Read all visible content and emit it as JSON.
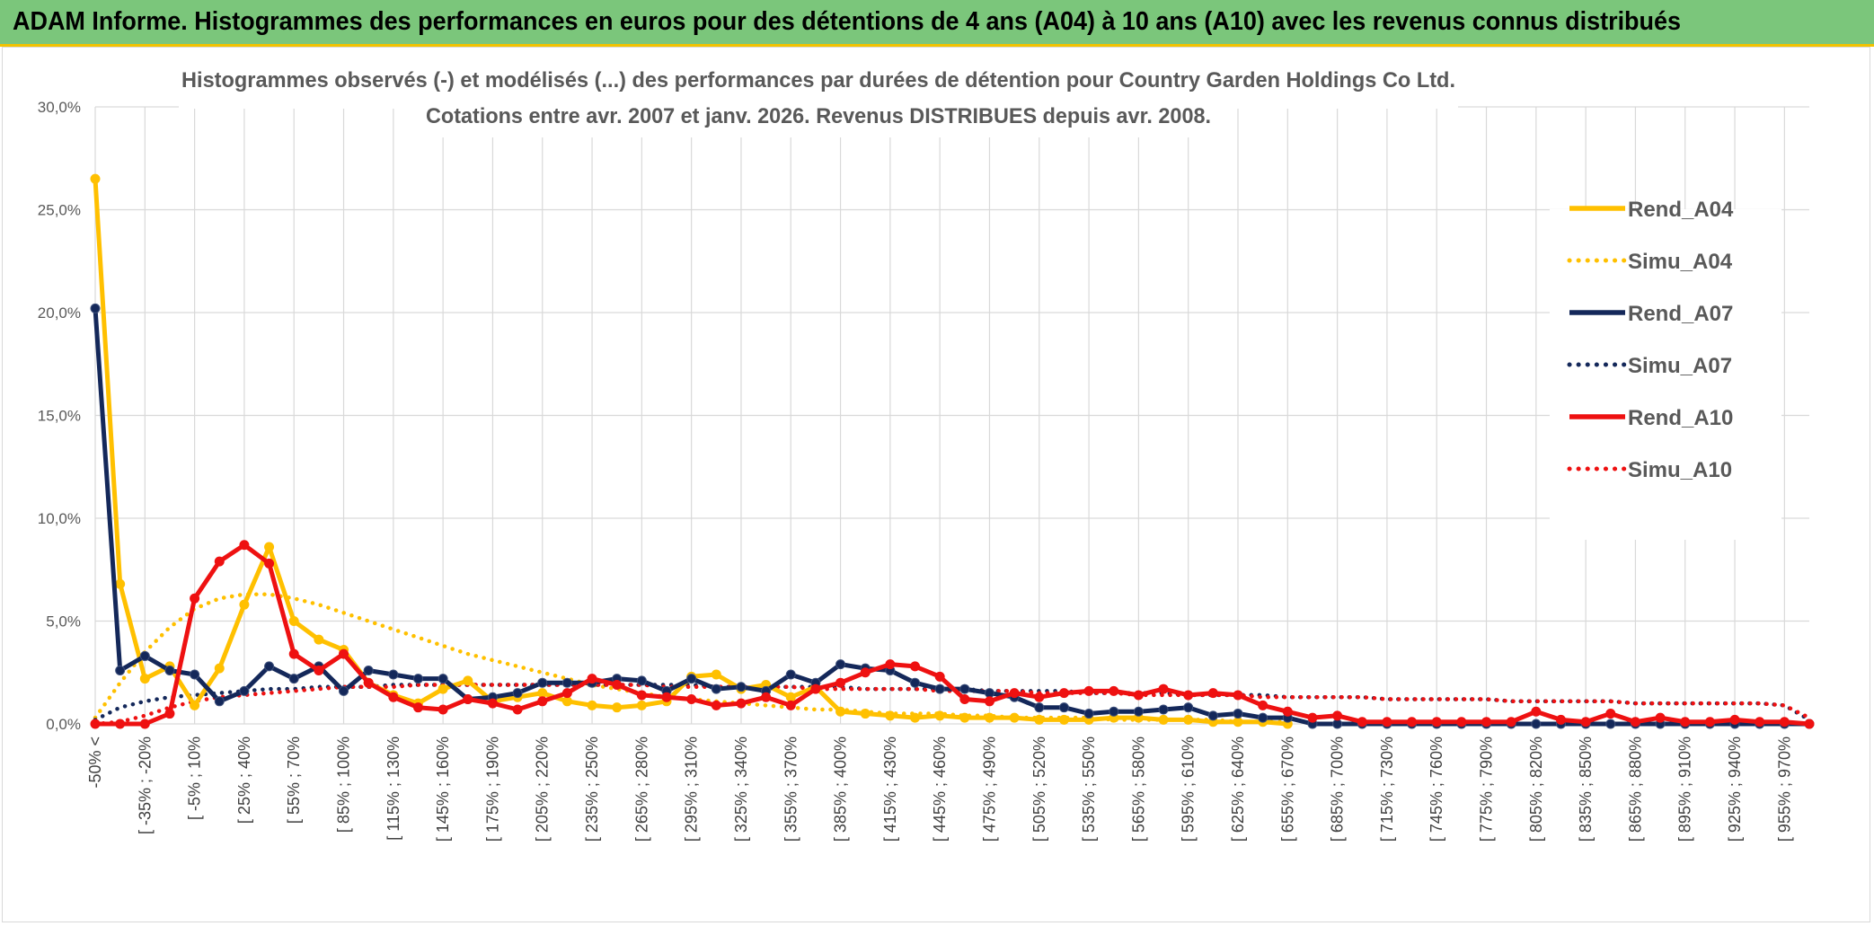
{
  "header": {
    "title": "ADAM Informe. Histogrammes des performances en euros pour des détentions de 4 ans (A04) à 10 ans (A10) avec les revenus connus distribués"
  },
  "chart_data": {
    "type": "line",
    "title": "Histogrammes observés (-) et modélisés (...) des performances par durées de détention pour Country Garden Holdings Co Ltd.",
    "subtitle": "Cotations entre avr. 2007 et janv. 2026. Revenus DISTRIBUES depuis avr. 2008.",
    "xlabel": "",
    "ylabel": "",
    "ylim": [
      0,
      30
    ],
    "y_ticks": [
      "0,0%",
      "5,0%",
      "10,0%",
      "15,0%",
      "20,0%",
      "25,0%",
      "30,0%"
    ],
    "grid": true,
    "legend_position": "right",
    "x_tick_labels": [
      "-50% <",
      "[ -35% ; -20%",
      "[ -5% ; 10%",
      "[ 25% ; 40%",
      "[ 55% ; 70%",
      "[ 85% ; 100%",
      "[ 115% ; 130%",
      "[ 145% ; 160%",
      "[ 175% ; 190%",
      "[ 205% ; 220%",
      "[ 235% ; 250%",
      "[ 265% ; 280%",
      "[ 295% ; 310%",
      "[ 325% ; 340%",
      "[ 355% ; 370%",
      "[ 385% ; 400%",
      "[ 415% ; 430%",
      "[ 445% ; 460%",
      "[ 475% ; 490%",
      "[ 505% ; 520%",
      "[ 535% ; 550%",
      "[ 565% ; 580%",
      "[ 595% ; 610%",
      "[ 625% ; 640%",
      "[ 655% ; 670%",
      "[ 685% ; 700%",
      "[ 715% ; 730%",
      "[ 745% ; 760%",
      "[ 775% ; 790%",
      "[ 805% ; 820%",
      "[ 835% ; 850%",
      "[ 865% ; 880%",
      "[ 895% ; 910%",
      "[ 925% ; 940%",
      "[ 955% ; 970%"
    ],
    "x_count": 70,
    "series": [
      {
        "name": "Rend_A04",
        "style": "solid",
        "color": "#ffc000",
        "markers": true,
        "values": [
          26.5,
          6.8,
          2.2,
          2.8,
          0.9,
          2.7,
          5.8,
          8.6,
          5.0,
          4.1,
          3.6,
          2.0,
          1.4,
          1.0,
          1.7,
          2.1,
          1.1,
          1.3,
          1.5,
          1.1,
          0.9,
          0.8,
          0.9,
          1.1,
          2.3,
          2.4,
          1.7,
          1.9,
          1.3,
          1.8,
          0.6,
          0.5,
          0.4,
          0.3,
          0.4,
          0.3,
          0.3,
          0.3,
          0.2,
          0.2,
          0.2,
          0.3,
          0.3,
          0.2,
          0.2,
          0.1,
          0.1,
          0.1,
          0.0,
          null,
          null,
          null,
          null,
          null,
          null,
          null,
          null,
          null,
          null,
          null,
          null,
          null,
          null,
          null,
          null,
          null,
          null,
          null,
          null,
          null
        ]
      },
      {
        "name": "Simu_A04",
        "style": "dotted",
        "color": "#ffc000",
        "markers": false,
        "values": [
          0.3,
          2.0,
          3.5,
          4.7,
          5.6,
          6.1,
          6.3,
          6.3,
          6.1,
          5.8,
          5.4,
          5.0,
          4.6,
          4.2,
          3.8,
          3.4,
          3.1,
          2.8,
          2.5,
          2.2,
          1.9,
          1.7,
          1.5,
          1.3,
          1.2,
          1.1,
          1.0,
          0.9,
          0.8,
          0.7,
          0.7,
          0.6,
          0.5,
          0.5,
          0.5,
          0.4,
          0.4,
          0.3,
          0.3,
          0.3,
          0.3,
          0.2,
          0.2,
          0.2,
          0.2,
          0.2,
          0.1,
          0.1,
          0.1,
          null,
          null,
          null,
          null,
          null,
          null,
          null,
          null,
          null,
          null,
          null,
          null,
          null,
          null,
          null,
          null,
          null,
          null,
          null,
          null,
          null
        ]
      },
      {
        "name": "Rend_A07",
        "style": "solid",
        "color": "#14285a",
        "markers": true,
        "values": [
          20.2,
          2.6,
          3.3,
          2.6,
          2.4,
          1.1,
          1.6,
          2.8,
          2.2,
          2.8,
          1.6,
          2.6,
          2.4,
          2.2,
          2.2,
          1.2,
          1.3,
          1.5,
          2.0,
          2.0,
          2.0,
          2.2,
          2.1,
          1.6,
          2.2,
          1.7,
          1.8,
          1.6,
          2.4,
          2.0,
          2.9,
          2.7,
          2.6,
          2.0,
          1.7,
          1.7,
          1.5,
          1.3,
          0.8,
          0.8,
          0.5,
          0.6,
          0.6,
          0.7,
          0.8,
          0.4,
          0.5,
          0.3,
          0.3,
          0.0,
          0.0,
          0.0,
          0.0,
          0.0,
          0.0,
          0.0,
          0.0,
          0.0,
          0.0,
          0.0,
          0.0,
          0.0,
          0.0,
          0.0,
          0.0,
          0.0,
          0.0,
          0.0,
          0.0,
          0.0
        ]
      },
      {
        "name": "Simu_A07",
        "style": "dotted",
        "color": "#14285a",
        "markers": false,
        "values": [
          0.2,
          0.8,
          1.1,
          1.3,
          1.4,
          1.5,
          1.6,
          1.7,
          1.7,
          1.8,
          1.8,
          1.8,
          1.9,
          1.9,
          1.9,
          1.9,
          1.9,
          1.9,
          1.9,
          1.9,
          1.9,
          1.9,
          1.9,
          1.9,
          1.9,
          1.8,
          1.8,
          1.8,
          1.8,
          1.8,
          1.8,
          1.7,
          1.7,
          1.7,
          1.7,
          1.7,
          1.6,
          1.6,
          1.6,
          1.6,
          1.5,
          1.5,
          1.5,
          1.5,
          1.4,
          1.4,
          1.4,
          1.4,
          1.3,
          1.3,
          1.3,
          1.3,
          1.2,
          1.2,
          1.2,
          1.2,
          1.2,
          1.1,
          1.1,
          1.1,
          1.1,
          1.1,
          1.0,
          1.0,
          1.0,
          1.0,
          1.0,
          1.0,
          0.9,
          0.2
        ]
      },
      {
        "name": "Rend_A10",
        "style": "solid",
        "color": "#ee1111",
        "markers": true,
        "values": [
          0.0,
          0.0,
          0.0,
          0.5,
          6.1,
          7.9,
          8.7,
          7.8,
          3.4,
          2.6,
          3.4,
          2.0,
          1.3,
          0.8,
          0.7,
          1.2,
          1.0,
          0.7,
          1.1,
          1.5,
          2.2,
          1.9,
          1.4,
          1.3,
          1.2,
          0.9,
          1.0,
          1.3,
          0.9,
          1.7,
          2.0,
          2.5,
          2.9,
          2.8,
          2.3,
          1.2,
          1.1,
          1.5,
          1.3,
          1.5,
          1.6,
          1.6,
          1.4,
          1.7,
          1.4,
          1.5,
          1.4,
          0.9,
          0.6,
          0.3,
          0.4,
          0.1,
          0.1,
          0.1,
          0.1,
          0.1,
          0.1,
          0.1,
          0.6,
          0.2,
          0.1,
          0.5,
          0.1,
          0.3,
          0.1,
          0.1,
          0.2,
          0.1,
          0.1,
          0.0
        ]
      },
      {
        "name": "Simu_A10",
        "style": "dotted",
        "color": "#ee1111",
        "markers": false,
        "values": [
          0.0,
          0.1,
          0.4,
          0.8,
          1.1,
          1.3,
          1.4,
          1.5,
          1.6,
          1.7,
          1.8,
          1.8,
          1.8,
          1.9,
          1.9,
          1.9,
          1.9,
          1.9,
          1.9,
          1.9,
          1.9,
          1.9,
          1.9,
          1.8,
          1.8,
          1.8,
          1.8,
          1.8,
          1.8,
          1.7,
          1.7,
          1.7,
          1.7,
          1.7,
          1.6,
          1.6,
          1.6,
          1.6,
          1.5,
          1.5,
          1.5,
          1.5,
          1.4,
          1.4,
          1.4,
          1.4,
          1.4,
          1.3,
          1.3,
          1.3,
          1.3,
          1.3,
          1.2,
          1.2,
          1.2,
          1.2,
          1.2,
          1.1,
          1.1,
          1.1,
          1.1,
          1.1,
          1.0,
          1.0,
          1.0,
          1.0,
          1.0,
          1.0,
          0.9,
          0.3
        ]
      }
    ]
  }
}
